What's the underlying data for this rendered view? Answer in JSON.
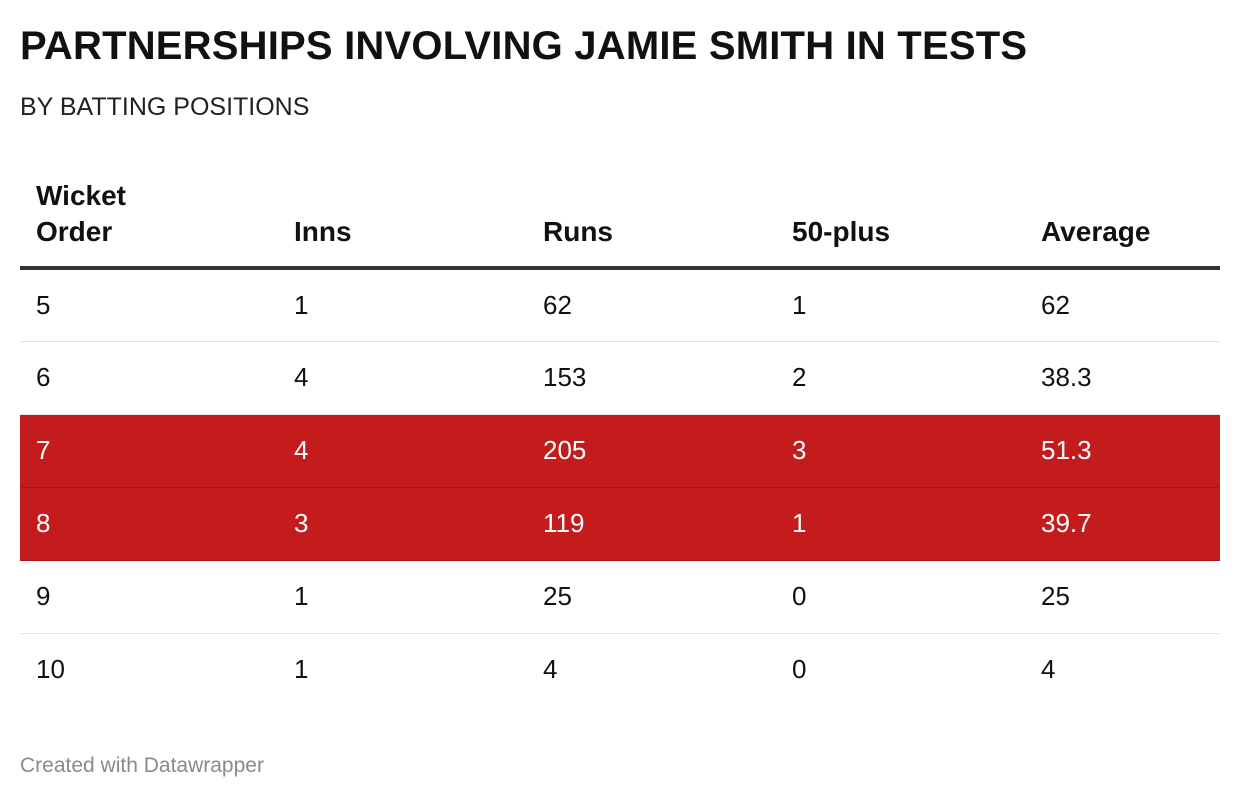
{
  "title": "PARTNERSHIPS INVOLVING JAMIE SMITH IN TESTS",
  "subtitle": "BY BATTING POSITIONS",
  "footer": "Created with Datawrapper",
  "colors": {
    "highlight": "#c41c1c",
    "text": "#111111",
    "footer": "#8a8a8a"
  },
  "chart_data": {
    "type": "table",
    "title": "PARTNERSHIPS INVOLVING JAMIE SMITH IN TESTS",
    "subtitle": "BY BATTING POSITIONS",
    "columns": [
      "Wicket Order",
      "Inns",
      "Runs",
      "50-plus",
      "Average"
    ],
    "rows": [
      {
        "wicket_order": "5",
        "inns": "1",
        "runs": "62",
        "fifty_plus": "1",
        "average": "62",
        "highlighted": false
      },
      {
        "wicket_order": "6",
        "inns": "4",
        "runs": "153",
        "fifty_plus": "2",
        "average": "38.3",
        "highlighted": false
      },
      {
        "wicket_order": "7",
        "inns": "4",
        "runs": "205",
        "fifty_plus": "3",
        "average": "51.3",
        "highlighted": true
      },
      {
        "wicket_order": "8",
        "inns": "3",
        "runs": "119",
        "fifty_plus": "1",
        "average": "39.7",
        "highlighted": true
      },
      {
        "wicket_order": "9",
        "inns": "1",
        "runs": "25",
        "fifty_plus": "0",
        "average": "25",
        "highlighted": false
      },
      {
        "wicket_order": "10",
        "inns": "1",
        "runs": "4",
        "fifty_plus": "0",
        "average": "4",
        "highlighted": false
      }
    ]
  }
}
